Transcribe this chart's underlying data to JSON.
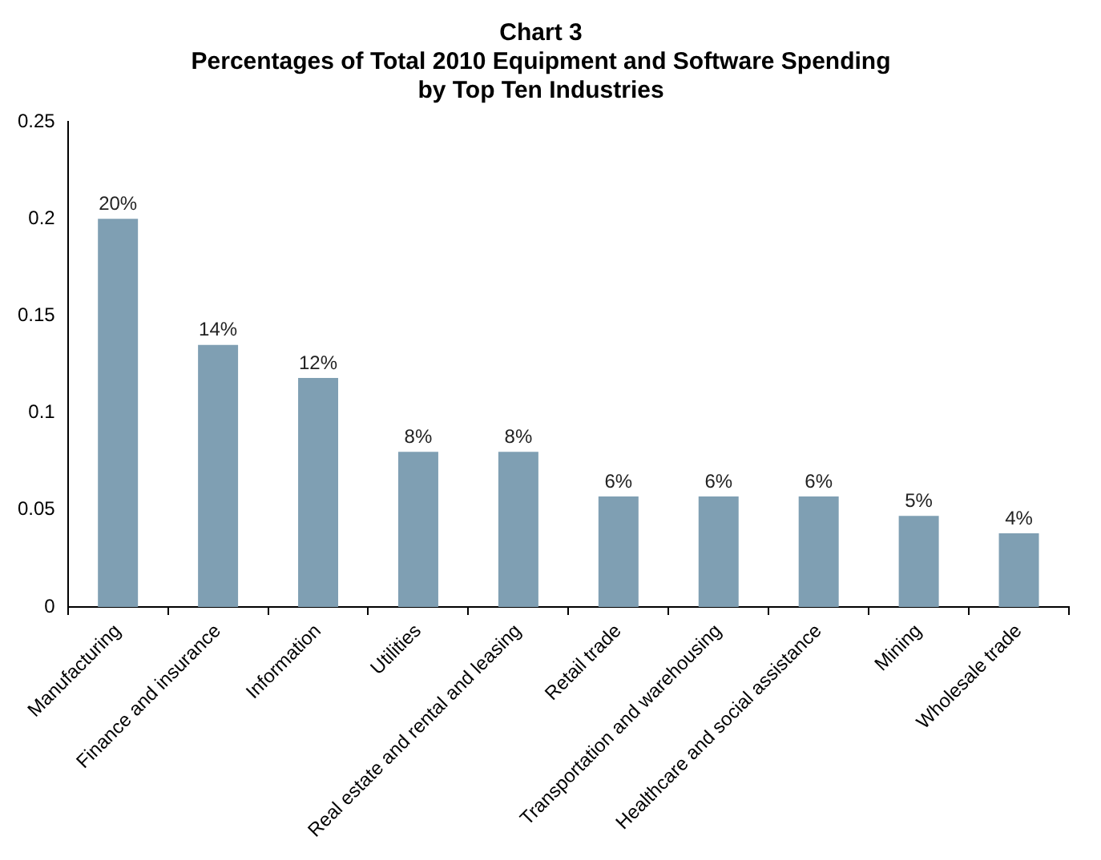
{
  "chart_data": {
    "type": "bar",
    "title": "Chart 3\nPercentages of Total 2010 Equipment and Software Spending\nby Top Ten Industries",
    "categories": [
      "Manufacturing",
      "Finance and insurance",
      "Information",
      "Utilities",
      "Real estate and rental and leasing",
      "Retail trade",
      "Transportation and warehousing",
      "Healthcare and social assistance",
      "Mining",
      "Wholesale trade"
    ],
    "values": [
      0.2,
      0.135,
      0.118,
      0.08,
      0.08,
      0.057,
      0.057,
      0.057,
      0.047,
      0.038
    ],
    "value_labels": [
      "20%",
      "14%",
      "12%",
      "8%",
      "8%",
      "6%",
      "6%",
      "6%",
      "5%",
      "4%"
    ],
    "color": "#7f9fb3",
    "ylim": [
      0,
      0.25
    ],
    "yticks": [
      0,
      0.05,
      0.1,
      0.15,
      0.2,
      0.25
    ],
    "grid": false,
    "legend": false
  }
}
